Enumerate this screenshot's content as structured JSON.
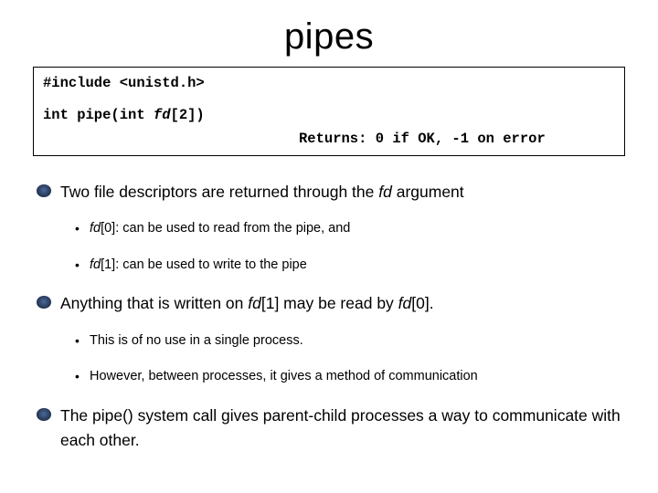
{
  "title": "pipes",
  "codebox": {
    "include_line": "#include <unistd.h>",
    "sig_prefix": "int pipe(int ",
    "sig_fd": "fd",
    "sig_suffix": "[2])",
    "returns": "Returns: 0 if OK, -1 on error"
  },
  "bullets": {
    "b1_a": "Two file descriptors are returned through the ",
    "b1_fd": "fd",
    "b1_b": " argument",
    "b1_sub1_a": "fd",
    "b1_sub1_b": "[0]: can be used to read from the pipe, and",
    "b1_sub2_a": "fd",
    "b1_sub2_b": "[1]: can be used to write to the pipe",
    "b2_a": "Anything that is written on ",
    "b2_fd1": "fd",
    "b2_b": "[1] may be read by ",
    "b2_fd0": "fd",
    "b2_c": "[0].",
    "b2_sub1": "This is of no use in a single process.",
    "b2_sub2": "However, between processes, it gives a method of communication",
    "b3": "The pipe() system call gives parent-child processes a way to communicate with each other."
  },
  "colors": {
    "background": "#ffffff",
    "text": "#000000",
    "border": "#000000"
  },
  "fontsize": {
    "title": 40,
    "body": 17.5,
    "sub": 14.5,
    "code": 15.5
  }
}
